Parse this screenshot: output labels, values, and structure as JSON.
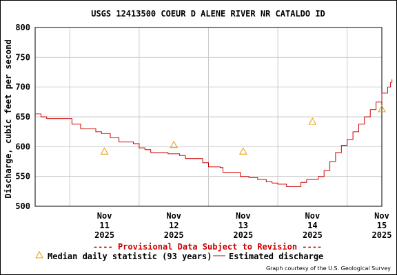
{
  "chart_data": {
    "type": "line",
    "title": "USGS 12413500 COEUR D ALENE RIVER NR CATALDO ID",
    "ylabel": "Discharge, cubic feet per second",
    "xlabel": "",
    "ylim": [
      500,
      800
    ],
    "yticks": [
      500,
      550,
      600,
      650,
      700,
      750,
      800
    ],
    "xlim": [
      "2025-11-10T12:00",
      "2025-11-15T12:00"
    ],
    "xticks": [
      {
        "x": "2025-11-11T12:00",
        "lines": [
          "Nov",
          "11",
          "2025"
        ]
      },
      {
        "x": "2025-11-12T12:00",
        "lines": [
          "Nov",
          "12",
          "2025"
        ]
      },
      {
        "x": "2025-11-13T12:00",
        "lines": [
          "Nov",
          "13",
          "2025"
        ]
      },
      {
        "x": "2025-11-14T12:00",
        "lines": [
          "Nov",
          "14",
          "2025"
        ]
      },
      {
        "x": "2025-11-15T12:00",
        "lines": [
          "Nov",
          "15",
          "2025"
        ]
      }
    ],
    "day_gridlines": [
      "2025-11-11T00:00",
      "2025-11-12T00:00",
      "2025-11-13T00:00",
      "2025-11-14T00:00",
      "2025-11-15T00:00"
    ],
    "grid": true,
    "series": [
      {
        "name": "Estimated discharge",
        "color": "#cc0000",
        "style": "step-line",
        "points": [
          [
            "2025-11-10T12:00",
            655
          ],
          [
            "2025-11-10T14:00",
            650
          ],
          [
            "2025-11-10T16:00",
            647
          ],
          [
            "2025-11-10T20:00",
            647
          ],
          [
            "2025-11-11T00:00",
            647
          ],
          [
            "2025-11-11T00:45",
            638
          ],
          [
            "2025-11-11T03:00",
            638
          ],
          [
            "2025-11-11T03:45",
            630
          ],
          [
            "2025-11-11T08:00",
            630
          ],
          [
            "2025-11-11T09:00",
            625
          ],
          [
            "2025-11-11T11:00",
            622
          ],
          [
            "2025-11-11T14:00",
            615
          ],
          [
            "2025-11-11T17:00",
            608
          ],
          [
            "2025-11-11T22:00",
            605
          ],
          [
            "2025-11-12T00:00",
            598
          ],
          [
            "2025-11-12T02:00",
            595
          ],
          [
            "2025-11-12T04:00",
            590
          ],
          [
            "2025-11-12T10:00",
            588
          ],
          [
            "2025-11-12T14:00",
            585
          ],
          [
            "2025-11-12T16:00",
            580
          ],
          [
            "2025-11-12T21:00",
            580
          ],
          [
            "2025-11-12T22:00",
            573
          ],
          [
            "2025-11-13T00:00",
            566
          ],
          [
            "2025-11-13T04:00",
            565
          ],
          [
            "2025-11-13T05:00",
            557
          ],
          [
            "2025-11-13T10:00",
            557
          ],
          [
            "2025-11-13T11:00",
            550
          ],
          [
            "2025-11-13T14:00",
            548
          ],
          [
            "2025-11-13T17:00",
            545
          ],
          [
            "2025-11-13T20:00",
            541
          ],
          [
            "2025-11-13T22:00",
            539
          ],
          [
            "2025-11-14T00:00",
            537
          ],
          [
            "2025-11-14T03:00",
            533
          ],
          [
            "2025-11-14T06:00",
            533
          ],
          [
            "2025-11-14T08:00",
            540
          ],
          [
            "2025-11-14T10:00",
            545
          ],
          [
            "2025-11-14T14:00",
            550
          ],
          [
            "2025-11-14T16:00",
            560
          ],
          [
            "2025-11-14T18:00",
            575
          ],
          [
            "2025-11-14T20:00",
            590
          ],
          [
            "2025-11-14T22:00",
            602
          ],
          [
            "2025-11-15T00:00",
            612
          ],
          [
            "2025-11-15T02:00",
            625
          ],
          [
            "2025-11-15T04:00",
            638
          ],
          [
            "2025-11-15T06:00",
            650
          ],
          [
            "2025-11-15T08:00",
            662
          ],
          [
            "2025-11-15T10:00",
            675
          ],
          [
            "2025-11-15T12:00",
            690
          ],
          [
            "2025-11-15T14:00",
            700
          ],
          [
            "2025-11-15T15:00",
            708
          ],
          [
            "2025-11-15T15:30",
            713
          ]
        ]
      },
      {
        "name": "Median daily statistic (93 years)",
        "color": "#e0a000",
        "style": "triangle-marker",
        "points": [
          [
            "2025-11-11T12:00",
            592
          ],
          [
            "2025-11-12T12:00",
            603
          ],
          [
            "2025-11-13T12:00",
            592
          ],
          [
            "2025-11-14T12:00",
            642
          ],
          [
            "2025-11-15T12:00",
            663
          ]
        ]
      }
    ],
    "legend_position": "bottom"
  },
  "banner": "---- Provisional Data Subject to Revision ----",
  "legend": {
    "median": "Median daily statistic (93 years)",
    "estimated": "Estimated discharge"
  },
  "credit": "Graph courtesy of the U.S. Geological Survey",
  "colors": {
    "discharge": "#cc0000",
    "median": "#e0a000",
    "banner": "#cc0000",
    "grid": "#cccccc"
  }
}
